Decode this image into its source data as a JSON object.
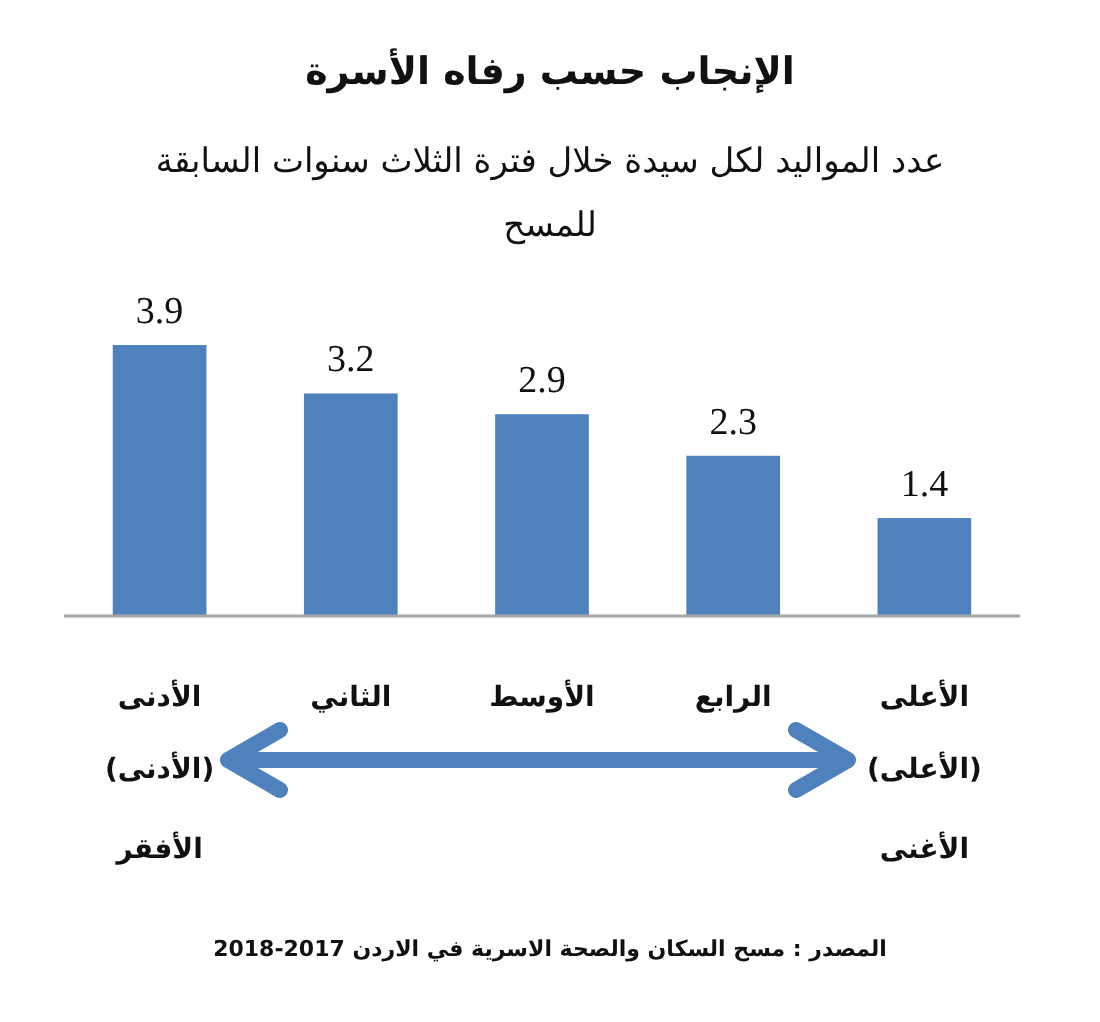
{
  "chart_data": {
    "type": "bar",
    "title": "الإنجاب حسب رفاه الأسرة",
    "subtitle": "عدد المواليد لكل سيدة خلال فترة الثلاث سنوات السابقة للمسح",
    "categories": [
      "الأدنى",
      "الثاني",
      "الأوسط",
      "الرابع",
      "الأعلى"
    ],
    "values": [
      3.9,
      3.2,
      2.9,
      2.3,
      1.4
    ],
    "color": "#4f81bd",
    "data_labels": true,
    "annotations": [
      "(الأدنى)",
      "الأفقر",
      "(الأعلى)",
      "الأغنى",
      "المصدر : مسح السكان والصحة الاسرية في الاردن 2017-2018"
    ]
  }
}
